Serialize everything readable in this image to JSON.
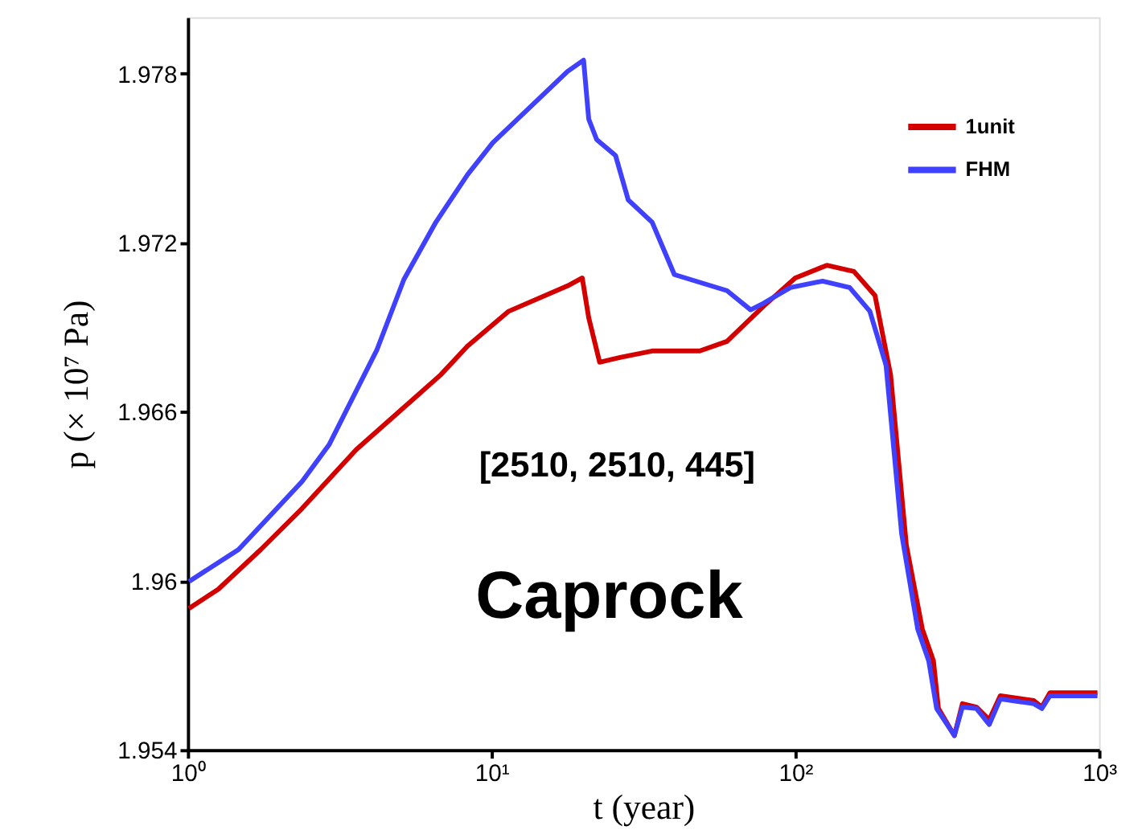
{
  "chart_data": {
    "type": "line",
    "xlabel": "t (year)",
    "ylabel": "p (× 10⁷ Pa)",
    "log": "x",
    "xlim": [
      1,
      1000
    ],
    "xticks": [
      {
        "value": 1,
        "label": "10⁰"
      },
      {
        "value": 10,
        "label": "10¹"
      },
      {
        "value": 100,
        "label": "10²"
      },
      {
        "value": 1000,
        "label": "10³"
      }
    ],
    "ylim": [
      1.954,
      1.98
    ],
    "yticks": [
      1.954,
      1.96,
      1.966,
      1.972,
      1.978
    ],
    "grid": false,
    "legend": "top right",
    "marker": "none",
    "line_style": "solid",
    "annotations": [
      "[2510, 2510, 445]",
      "Caprock"
    ],
    "series": [
      {
        "name": "1unit",
        "color": "#d40000",
        "x": [
          1.01,
          1.26,
          1.74,
          2.38,
          3.59,
          4.91,
          6.8,
          8.34,
          11.4,
          17.8,
          19.9,
          20.9,
          22.7,
          26.5,
          33.8,
          48.5,
          59.6,
          78.5,
          100,
          127,
          156,
          183,
          206,
          232,
          262,
          285,
          296,
          334,
          355,
          395,
          435,
          473,
          610,
          648,
          689,
          988
        ],
        "values": [
          1.95902,
          1.9597,
          1.96111,
          1.96257,
          1.96466,
          1.96596,
          1.96731,
          1.96833,
          1.96957,
          1.97047,
          1.97075,
          1.96934,
          1.96776,
          1.96793,
          1.96816,
          1.96816,
          1.9685,
          1.96974,
          1.97075,
          1.9712,
          1.97098,
          1.97013,
          1.96731,
          1.96128,
          1.95829,
          1.95716,
          1.95547,
          1.95451,
          1.95564,
          1.95552,
          1.95507,
          1.95592,
          1.95575,
          1.95552,
          1.95603,
          1.95603
        ]
      },
      {
        "name": "FHM",
        "color": "#4040ff",
        "x": [
          1.01,
          1.47,
          2.38,
          2.92,
          4.2,
          5.15,
          6.56,
          8.34,
          10.1,
          17.8,
          20.1,
          20.9,
          22.2,
          25.6,
          28.2,
          33.8,
          40.0,
          59.6,
          71.3,
          78.5,
          96.4,
          123,
          151,
          176,
          199,
          224,
          253,
          275,
          292,
          334,
          355,
          395,
          435,
          473,
          610,
          648,
          689,
          988
        ],
        "values": [
          1.95998,
          1.96111,
          1.96353,
          1.96483,
          1.96821,
          1.9707,
          1.97273,
          1.97442,
          1.97555,
          1.97808,
          1.97848,
          1.97639,
          1.97566,
          1.9751,
          1.97352,
          1.97273,
          1.97087,
          1.9703,
          1.96962,
          1.96985,
          1.97041,
          1.97064,
          1.97041,
          1.96957,
          1.96765,
          1.96167,
          1.95829,
          1.95716,
          1.95547,
          1.95451,
          1.95552,
          1.95547,
          1.9549,
          1.95581,
          1.95564,
          1.95547,
          1.95592,
          1.95592
        ]
      }
    ]
  }
}
